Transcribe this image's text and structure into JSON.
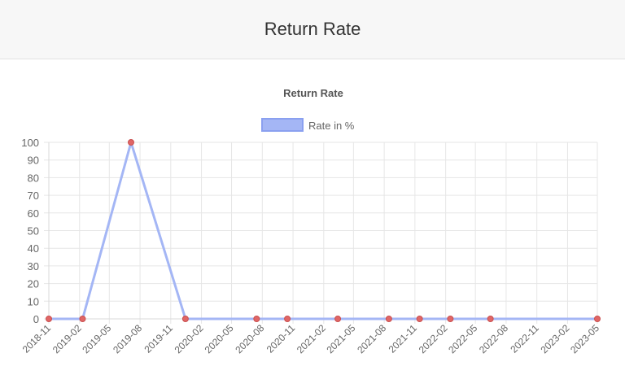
{
  "page": {
    "title": "Return Rate"
  },
  "chart_data": {
    "type": "line",
    "title": "Return Rate",
    "xlabel": "",
    "ylabel": "",
    "ylim": [
      0,
      100
    ],
    "y_ticks": [
      0,
      10,
      20,
      30,
      40,
      50,
      60,
      70,
      80,
      90,
      100
    ],
    "x_ticks": [
      "2018-11",
      "2019-02",
      "2019-05",
      "2019-08",
      "2019-11",
      "2020-02",
      "2020-05",
      "2020-08",
      "2020-11",
      "2021-02",
      "2021-05",
      "2021-08",
      "2021-11",
      "2022-02",
      "2022-05",
      "2022-08",
      "2022-11",
      "2023-02",
      "2023-05"
    ],
    "x_range": [
      "2018-11-01",
      "2023-05-01"
    ],
    "series": [
      {
        "name": "Rate in %",
        "color": "#a4b6f5",
        "point_color": "#e06666",
        "x": [
          "2018-11-01",
          "2019-02-10",
          "2019-07-05",
          "2019-12-15",
          "2020-07-15",
          "2020-10-15",
          "2021-03-15",
          "2021-08-15",
          "2021-11-15",
          "2022-02-15",
          "2022-06-15",
          "2023-05-01"
        ],
        "values": [
          0,
          0,
          100,
          0,
          0,
          0,
          0,
          0,
          0,
          0,
          0,
          0
        ]
      }
    ],
    "legend": "top",
    "grid": true
  }
}
